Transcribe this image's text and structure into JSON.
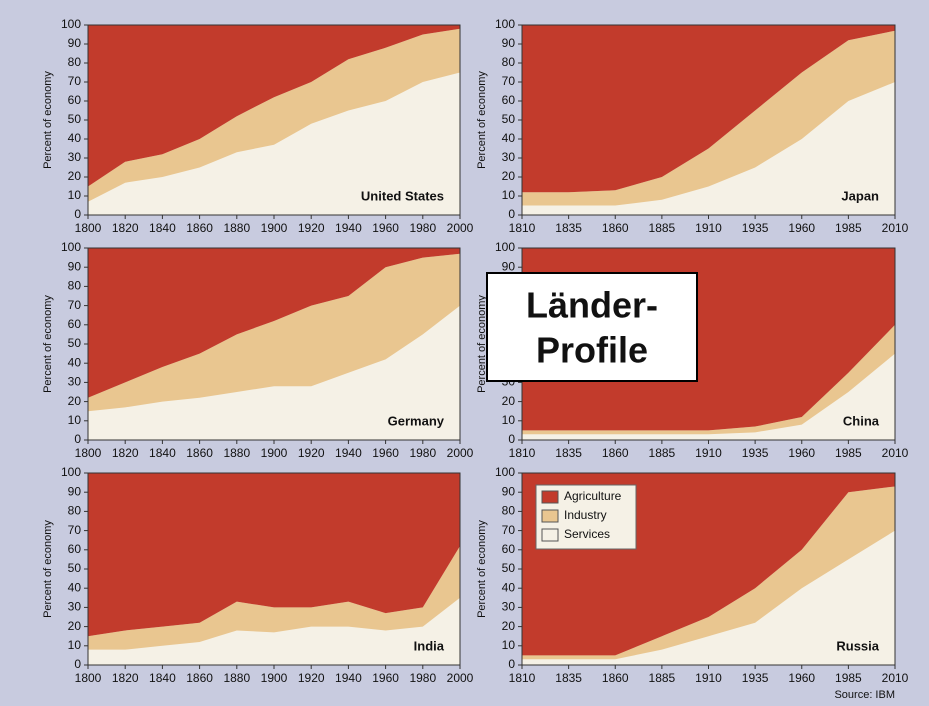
{
  "chart_data": [
    {
      "type": "area",
      "stacked": true,
      "title": "United States",
      "ylabel": "Percent of economy",
      "x": [
        1800,
        1820,
        1840,
        1860,
        1880,
        1900,
        1920,
        1940,
        1960,
        1980,
        2000
      ],
      "series": [
        {
          "name": "Agriculture",
          "color": "#c23b2c",
          "values": [
            85,
            72,
            68,
            60,
            48,
            38,
            30,
            18,
            12,
            5,
            2
          ]
        },
        {
          "name": "Industry",
          "color": "#e9c690",
          "values": [
            8,
            11,
            12,
            15,
            19,
            25,
            22,
            27,
            28,
            25,
            23
          ]
        },
        {
          "name": "Services",
          "color": "#f5f1e6",
          "values": [
            7,
            17,
            20,
            25,
            33,
            37,
            48,
            55,
            60,
            70,
            75
          ]
        }
      ],
      "xlim": [
        1800,
        2000
      ],
      "ylim": [
        0,
        100
      ],
      "xticks": [
        1800,
        1820,
        1840,
        1860,
        1880,
        1900,
        1920,
        1940,
        1960,
        1980,
        2000
      ],
      "yticks": [
        0,
        10,
        20,
        30,
        40,
        50,
        60,
        70,
        80,
        90,
        100
      ]
    },
    {
      "type": "area",
      "stacked": true,
      "title": "Japan",
      "ylabel": "Percent of economy",
      "x": [
        1810,
        1835,
        1860,
        1885,
        1910,
        1935,
        1960,
        1985,
        2010
      ],
      "series": [
        {
          "name": "Agriculture",
          "color": "#c23b2c",
          "values": [
            88,
            88,
            87,
            80,
            65,
            45,
            25,
            8,
            3
          ]
        },
        {
          "name": "Industry",
          "color": "#e9c690",
          "values": [
            7,
            7,
            8,
            12,
            20,
            30,
            35,
            32,
            27
          ]
        },
        {
          "name": "Services",
          "color": "#f5f1e6",
          "values": [
            5,
            5,
            5,
            8,
            15,
            25,
            40,
            60,
            70
          ]
        }
      ],
      "xlim": [
        1810,
        2010
      ],
      "ylim": [
        0,
        100
      ],
      "xticks": [
        1810,
        1835,
        1860,
        1885,
        1910,
        1935,
        1960,
        1985,
        2010
      ],
      "yticks": [
        0,
        10,
        20,
        30,
        40,
        50,
        60,
        70,
        80,
        90,
        100
      ]
    },
    {
      "type": "area",
      "stacked": true,
      "title": "Germany",
      "ylabel": "Percent of economy",
      "x": [
        1800,
        1820,
        1840,
        1860,
        1880,
        1900,
        1920,
        1940,
        1960,
        1980,
        2000
      ],
      "series": [
        {
          "name": "Agriculture",
          "color": "#c23b2c",
          "values": [
            78,
            70,
            62,
            55,
            45,
            38,
            30,
            25,
            10,
            5,
            3
          ]
        },
        {
          "name": "Industry",
          "color": "#e9c690",
          "values": [
            7,
            13,
            18,
            23,
            30,
            34,
            42,
            40,
            48,
            40,
            27
          ]
        },
        {
          "name": "Services",
          "color": "#f5f1e6",
          "values": [
            15,
            17,
            20,
            22,
            25,
            28,
            28,
            35,
            42,
            55,
            70
          ]
        }
      ],
      "xlim": [
        1800,
        2000
      ],
      "ylim": [
        0,
        100
      ],
      "xticks": [
        1800,
        1820,
        1840,
        1860,
        1880,
        1900,
        1920,
        1940,
        1960,
        1980,
        2000
      ],
      "yticks": [
        0,
        10,
        20,
        30,
        40,
        50,
        60,
        70,
        80,
        90,
        100
      ]
    },
    {
      "type": "area",
      "stacked": true,
      "title": "China",
      "ylabel": "Percent of economy",
      "x": [
        1810,
        1835,
        1860,
        1885,
        1910,
        1935,
        1960,
        1985,
        2010
      ],
      "series": [
        {
          "name": "Agriculture",
          "color": "#c23b2c",
          "values": [
            95,
            95,
            95,
            95,
            95,
            93,
            88,
            65,
            40
          ]
        },
        {
          "name": "Industry",
          "color": "#e9c690",
          "values": [
            2,
            2,
            2,
            2,
            2,
            3,
            4,
            10,
            15
          ]
        },
        {
          "name": "Services",
          "color": "#f5f1e6",
          "values": [
            3,
            3,
            3,
            3,
            3,
            4,
            8,
            25,
            45
          ]
        }
      ],
      "xlim": [
        1810,
        2010
      ],
      "ylim": [
        0,
        100
      ],
      "xticks": [
        1810,
        1835,
        1860,
        1885,
        1910,
        1935,
        1960,
        1985,
        2010
      ],
      "yticks": [
        0,
        10,
        20,
        30,
        40,
        50,
        60,
        70,
        80,
        90,
        100
      ]
    },
    {
      "type": "area",
      "stacked": true,
      "title": "India",
      "ylabel": "Percent of economy",
      "x": [
        1800,
        1820,
        1840,
        1860,
        1880,
        1900,
        1920,
        1940,
        1960,
        1980,
        2000
      ],
      "series": [
        {
          "name": "Agriculture",
          "color": "#c23b2c",
          "values": [
            85,
            82,
            80,
            78,
            67,
            70,
            70,
            67,
            73,
            70,
            38
          ]
        },
        {
          "name": "Industry",
          "color": "#e9c690",
          "values": [
            7,
            10,
            10,
            10,
            15,
            13,
            10,
            13,
            9,
            10,
            27
          ]
        },
        {
          "name": "Services",
          "color": "#f5f1e6",
          "values": [
            8,
            8,
            10,
            12,
            18,
            17,
            20,
            20,
            18,
            20,
            35
          ]
        }
      ],
      "xlim": [
        1800,
        2000
      ],
      "ylim": [
        0,
        100
      ],
      "xticks": [
        1800,
        1820,
        1840,
        1860,
        1880,
        1900,
        1920,
        1940,
        1960,
        1980,
        2000
      ],
      "yticks": [
        0,
        10,
        20,
        30,
        40,
        50,
        60,
        70,
        80,
        90,
        100
      ]
    },
    {
      "type": "area",
      "stacked": true,
      "title": "Russia",
      "ylabel": "Percent of economy",
      "legend": "upper left",
      "x": [
        1810,
        1835,
        1860,
        1885,
        1910,
        1935,
        1960,
        1985,
        2010
      ],
      "series": [
        {
          "name": "Agriculture",
          "color": "#c23b2c",
          "values": [
            95,
            95,
            95,
            85,
            75,
            60,
            40,
            10,
            7
          ]
        },
        {
          "name": "Industry",
          "color": "#e9c690",
          "values": [
            2,
            2,
            2,
            7,
            10,
            18,
            20,
            35,
            23
          ]
        },
        {
          "name": "Services",
          "color": "#f5f1e6",
          "values": [
            3,
            3,
            3,
            8,
            15,
            22,
            40,
            55,
            70
          ]
        }
      ],
      "xlim": [
        1810,
        2010
      ],
      "ylim": [
        0,
        100
      ],
      "xticks": [
        1810,
        1835,
        1860,
        1885,
        1910,
        1935,
        1960,
        1985,
        2010
      ],
      "yticks": [
        0,
        10,
        20,
        30,
        40,
        50,
        60,
        70,
        80,
        90,
        100
      ]
    }
  ],
  "overlay_lines": [
    "Länder-",
    "Profile"
  ],
  "source": "Source: IBM"
}
